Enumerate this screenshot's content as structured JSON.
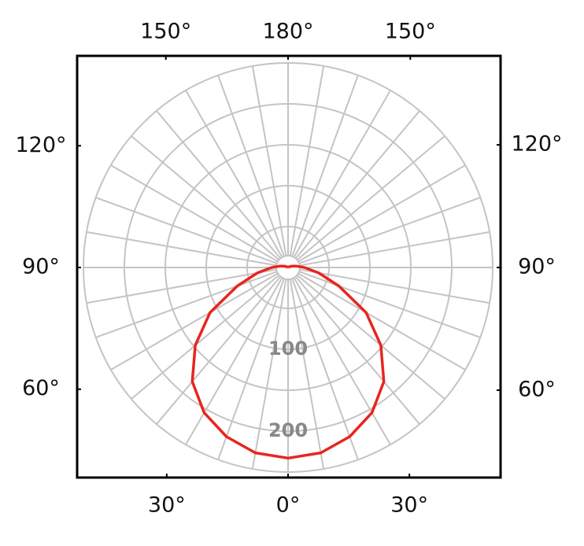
{
  "chart_data": {
    "type": "polar",
    "theta": [
      -180,
      -170,
      -160,
      -150,
      -140,
      -130,
      -120,
      -110,
      -100,
      -90,
      -80,
      -70,
      -60,
      -50,
      -40,
      -30,
      -20,
      -10,
      0,
      10,
      20,
      30,
      40,
      50,
      60,
      70,
      80,
      90,
      100,
      110,
      120,
      130,
      140,
      150,
      160,
      170,
      180
    ],
    "values": [
      0,
      0,
      0,
      0,
      0,
      0,
      2,
      5,
      10,
      20,
      38,
      66,
      110,
      148,
      182,
      205,
      220,
      230,
      233,
      230,
      220,
      205,
      182,
      148,
      110,
      66,
      38,
      20,
      10,
      5,
      2,
      0,
      0,
      0,
      0,
      0,
      0
    ],
    "color": "#e8251f",
    "rlim": [
      0,
      250
    ],
    "rticks": [
      50,
      100,
      150,
      200,
      250
    ],
    "rlabels": [
      100,
      200
    ],
    "thetaticks": [
      {
        "value": 0,
        "label": "0°"
      },
      {
        "value": 30,
        "label": "30°"
      },
      {
        "value": 60,
        "label": "60°"
      },
      {
        "value": 90,
        "label": "90°"
      },
      {
        "value": 120,
        "label": "120°"
      },
      {
        "value": 150,
        "label": "150°"
      },
      {
        "value": 180,
        "label": "180°"
      }
    ],
    "grid": true
  }
}
